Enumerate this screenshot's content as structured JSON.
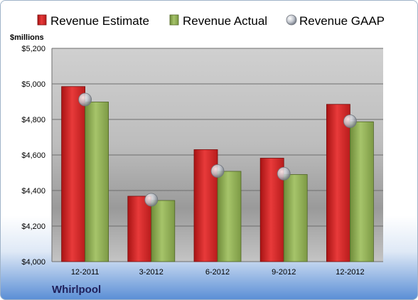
{
  "chart_data": {
    "type": "bar",
    "unit_label": "$millions",
    "company": "Whirlpool",
    "categories": [
      "12-2011",
      "3-2012",
      "6-2012",
      "9-2012",
      "12-2012"
    ],
    "series": [
      {
        "name": "Revenue Estimate",
        "kind": "bar",
        "color": "#d42a2a",
        "values": [
          4985,
          4368,
          4630,
          4582,
          4885
        ]
      },
      {
        "name": "Revenue Actual",
        "kind": "bar",
        "color": "#8fae55",
        "values": [
          4898,
          4344,
          4508,
          4490,
          4787
        ]
      },
      {
        "name": "Revenue GAAP",
        "kind": "marker",
        "color": "#b8bcc4",
        "values": [
          4912,
          4348,
          4510,
          4495,
          4790
        ]
      }
    ],
    "ylim": [
      4000,
      5200
    ],
    "yticks": [
      4000,
      4200,
      4400,
      4600,
      4800,
      5000,
      5200
    ],
    "ytick_labels": [
      "$4,000",
      "$4,200",
      "$4,400",
      "$4,600",
      "$4,800",
      "$5,000",
      "$5,200"
    ],
    "grid": true,
    "legend": "top"
  }
}
